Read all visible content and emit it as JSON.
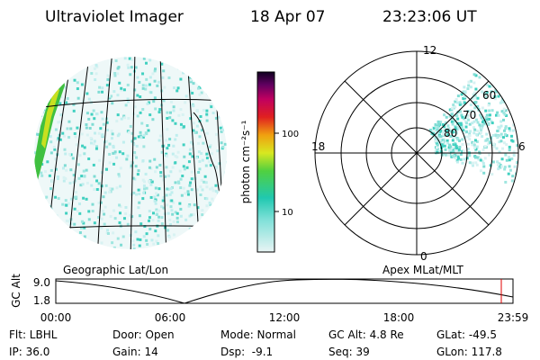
{
  "header": {
    "title": "Ultraviolet Imager",
    "date": "18 Apr 07",
    "time": "23:23:06 UT"
  },
  "colorbar": {
    "label": "photon cm⁻²s⁻¹",
    "ticks": [
      "100",
      "10"
    ]
  },
  "left_panel": {
    "caption": "Geographic Lat/Lon"
  },
  "right_panel": {
    "caption": "Apex MLat/MLT",
    "mlt_labels": [
      "12",
      "18",
      "6",
      "0"
    ],
    "mlat_labels": [
      "60",
      "70",
      "80"
    ]
  },
  "altitude_strip": {
    "axis_label": "GC Alt",
    "y_labels": [
      "9.0",
      "1.8"
    ],
    "x_labels": [
      "00:00",
      "06:00",
      "12:00",
      "18:00",
      "23:59"
    ]
  },
  "info": [
    [
      "Flt: LBHL",
      "IP: 36.0"
    ],
    [
      "Door: Open",
      "Gain: 14"
    ],
    [
      "Mode: Normal",
      "Dsp:  -9.1"
    ],
    [
      "GC Alt: 4.8 Re",
      "Seq: 39"
    ],
    [
      "GLat: -49.5",
      "GLon: 117.8"
    ]
  ]
}
